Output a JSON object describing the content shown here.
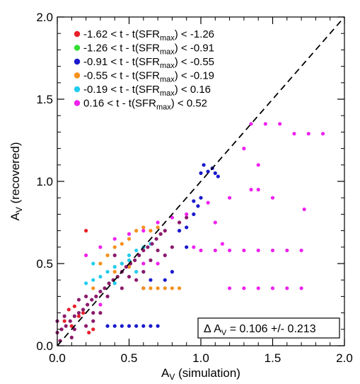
{
  "chart_data": {
    "type": "scatter",
    "title": "",
    "xlabel": {
      "main": "A",
      "sub": "V",
      "rest": " (simulation)"
    },
    "ylabel": {
      "main": "A",
      "sub": "V",
      "rest": " (recovered)"
    },
    "xlim": [
      0.0,
      2.0
    ],
    "ylim": [
      0.0,
      2.0
    ],
    "xticks": [
      "0.0",
      "0.5",
      "1.0",
      "1.5",
      "2.0"
    ],
    "yticks": [
      "0.0",
      "0.5",
      "1.0",
      "1.5",
      "2.0"
    ],
    "grid": false,
    "legend_position": "top-left",
    "reference_line": {
      "style": "dashed",
      "from": [
        0,
        0
      ],
      "to": [
        2,
        2
      ],
      "color": "#000000"
    },
    "annotation": {
      "prefix": "Δ A",
      "sub": "V",
      "rest": " = 0.106 +/- 0.213"
    },
    "series": [
      {
        "name": "-1.62 < t - t(SFR",
        "name_sub": "max",
        "name_end": ") < -1.26",
        "color": "#e8202a",
        "points": [
          [
            0.05,
            0.15
          ],
          [
            0.08,
            0.22
          ],
          [
            0.12,
            0.24
          ],
          [
            0.15,
            0.18
          ],
          [
            0.1,
            0.12
          ],
          [
            0.2,
            0.7
          ],
          [
            0.22,
            0.08
          ],
          [
            0.25,
            0.1
          ],
          [
            0.18,
            0.2
          ]
        ]
      },
      {
        "name": "-1.26 < t - t(SFR",
        "name_sub": "max",
        "name_end": ") < -0.91",
        "color": "#33dd33",
        "points": []
      },
      {
        "name": "-0.91 < t - t(SFR",
        "name_sub": "max",
        "name_end": ") < -0.55",
        "color": "#1a1acc",
        "points": [
          [
            0.35,
            0.12
          ],
          [
            0.4,
            0.12
          ],
          [
            0.45,
            0.12
          ],
          [
            0.5,
            0.12
          ],
          [
            0.55,
            0.12
          ],
          [
            0.6,
            0.12
          ],
          [
            0.65,
            0.12
          ],
          [
            0.7,
            0.12
          ],
          [
            0.75,
            0.4
          ],
          [
            0.8,
            0.45
          ],
          [
            0.85,
            0.7
          ],
          [
            0.9,
            0.72
          ],
          [
            0.95,
            0.8
          ],
          [
            0.98,
            0.85
          ],
          [
            1.0,
            1.05
          ],
          [
            1.02,
            1.1
          ],
          [
            1.05,
            1.06
          ],
          [
            1.08,
            1.08
          ],
          [
            1.1,
            1.05
          ],
          [
            1.12,
            1.03
          ],
          [
            0.9,
            0.6
          ],
          [
            0.95,
            0.88
          ],
          [
            1.0,
            0.9
          ],
          [
            0.6,
            0.35
          ],
          [
            0.65,
            0.4
          ]
        ]
      },
      {
        "name": "-0.55 < t - t(SFR",
        "name_sub": "max",
        "name_end": ") < -0.19",
        "color": "#f5901e",
        "points": [
          [
            0.3,
            0.5
          ],
          [
            0.35,
            0.55
          ],
          [
            0.4,
            0.6
          ],
          [
            0.45,
            0.62
          ],
          [
            0.5,
            0.65
          ],
          [
            0.55,
            0.7
          ],
          [
            0.6,
            0.72
          ],
          [
            0.65,
            0.7
          ],
          [
            0.7,
            0.72
          ],
          [
            0.6,
            0.35
          ],
          [
            0.65,
            0.35
          ],
          [
            0.7,
            0.35
          ],
          [
            0.75,
            0.35
          ],
          [
            0.8,
            0.35
          ],
          [
            0.85,
            0.35
          ],
          [
            0.4,
            0.45
          ],
          [
            0.5,
            0.48
          ],
          [
            0.25,
            0.35
          ],
          [
            0.45,
            0.5
          ]
        ]
      },
      {
        "name": "-0.19 < t - t(SFR",
        "name_sub": "max",
        "name_end": ") < 0.16",
        "color": "#22ccee",
        "points": [
          [
            0.2,
            0.38
          ],
          [
            0.25,
            0.4
          ],
          [
            0.3,
            0.42
          ],
          [
            0.35,
            0.45
          ],
          [
            0.4,
            0.48
          ],
          [
            0.45,
            0.5
          ],
          [
            0.5,
            0.52
          ],
          [
            0.55,
            0.58
          ],
          [
            0.6,
            0.6
          ],
          [
            0.65,
            0.62
          ],
          [
            0.4,
            0.38
          ],
          [
            0.5,
            0.55
          ],
          [
            0.6,
            0.45
          ],
          [
            0.55,
            0.45
          ],
          [
            0.25,
            0.5
          ]
        ]
      },
      {
        "name": "0.16 < t - t(SFR",
        "name_sub": "max",
        "name_end": ") < 0.52",
        "color": "#ee22ee",
        "points": [
          [
            0.2,
            0.55
          ],
          [
            0.3,
            0.6
          ],
          [
            0.4,
            0.65
          ],
          [
            0.5,
            0.68
          ],
          [
            0.6,
            0.7
          ],
          [
            0.7,
            0.75
          ],
          [
            0.8,
            0.78
          ],
          [
            0.9,
            0.8
          ],
          [
            1.0,
            0.58
          ],
          [
            1.1,
            0.58
          ],
          [
            1.2,
            0.58
          ],
          [
            1.3,
            0.58
          ],
          [
            1.4,
            0.58
          ],
          [
            1.5,
            0.58
          ],
          [
            1.6,
            0.58
          ],
          [
            1.7,
            0.58
          ],
          [
            1.2,
            0.35
          ],
          [
            1.3,
            0.35
          ],
          [
            1.4,
            0.35
          ],
          [
            1.5,
            0.35
          ],
          [
            1.6,
            0.35
          ],
          [
            1.7,
            0.35
          ],
          [
            1.35,
            1.35
          ],
          [
            1.45,
            1.35
          ],
          [
            1.55,
            1.35
          ],
          [
            1.65,
            1.29
          ],
          [
            1.75,
            1.29
          ],
          [
            1.85,
            1.29
          ],
          [
            1.3,
            1.2
          ],
          [
            1.4,
            1.1
          ],
          [
            1.35,
            0.95
          ],
          [
            1.4,
            0.95
          ],
          [
            1.5,
            0.9
          ],
          [
            1.72,
            0.83
          ],
          [
            1.2,
            0.9
          ],
          [
            1.05,
            0.87
          ],
          [
            1.1,
            0.75
          ],
          [
            1.15,
            0.62
          ],
          [
            0.95,
            0.6
          ],
          [
            0.3,
            0.25
          ],
          [
            0.6,
            0.5
          ],
          [
            0.7,
            0.5
          ]
        ]
      },
      {
        "name": "",
        "color": "#8b1a6b",
        "points": [
          [
            0.0,
            0.08
          ],
          [
            0.03,
            0.1
          ],
          [
            0.06,
            0.12
          ],
          [
            0.09,
            0.15
          ],
          [
            0.12,
            0.18
          ],
          [
            0.15,
            0.2
          ],
          [
            0.18,
            0.22
          ],
          [
            0.21,
            0.25
          ],
          [
            0.24,
            0.28
          ],
          [
            0.27,
            0.3
          ],
          [
            0.3,
            0.33
          ],
          [
            0.33,
            0.35
          ],
          [
            0.36,
            0.38
          ],
          [
            0.39,
            0.4
          ],
          [
            0.42,
            0.42
          ],
          [
            0.45,
            0.45
          ],
          [
            0.48,
            0.48
          ],
          [
            0.51,
            0.5
          ],
          [
            0.54,
            0.52
          ],
          [
            0.57,
            0.55
          ],
          [
            0.6,
            0.58
          ],
          [
            0.63,
            0.6
          ],
          [
            0.66,
            0.62
          ],
          [
            0.69,
            0.65
          ],
          [
            0.72,
            0.68
          ],
          [
            0.75,
            0.7
          ],
          [
            0.0,
            0.15
          ],
          [
            0.05,
            0.18
          ],
          [
            0.1,
            0.05
          ],
          [
            0.15,
            0.28
          ],
          [
            0.2,
            0.3
          ],
          [
            0.25,
            0.15
          ],
          [
            0.3,
            0.2
          ],
          [
            0.35,
            0.3
          ],
          [
            0.4,
            0.55
          ],
          [
            0.45,
            0.35
          ],
          [
            0.5,
            0.42
          ],
          [
            0.55,
            0.4
          ],
          [
            0.6,
            0.45
          ],
          [
            0.65,
            0.52
          ],
          [
            0.7,
            0.58
          ],
          [
            0.75,
            0.55
          ],
          [
            0.8,
            0.6
          ],
          [
            0.85,
            0.75
          ],
          [
            0.9,
            0.78
          ],
          [
            0.12,
            0.1
          ],
          [
            0.2,
            0.12
          ],
          [
            0.25,
            0.2
          ],
          [
            0.02,
            0.03
          ]
        ]
      }
    ]
  }
}
